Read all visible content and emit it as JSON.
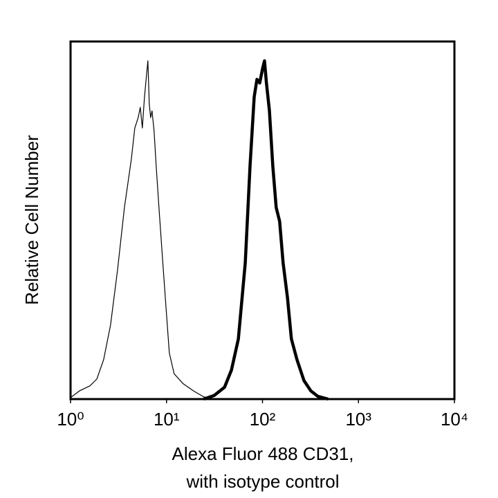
{
  "chart_data": {
    "type": "line",
    "xlabel": [
      "Alexa Fluor 488 CD31,",
      "with isotype control"
    ],
    "ylabel": "Relative Cell Number",
    "xscale": "log",
    "xlim": [
      1,
      10000
    ],
    "xticks": [
      {
        "value": 1,
        "label": "10⁰"
      },
      {
        "value": 10,
        "label": "10¹"
      },
      {
        "value": 100,
        "label": "10²"
      },
      {
        "value": 1000,
        "label": "10³"
      },
      {
        "value": 10000,
        "label": "10⁴"
      }
    ],
    "ylim": [
      0,
      100
    ],
    "series": [
      {
        "color": "#000000",
        "width": 1.2,
        "x": [
          1,
          1.24,
          1.59,
          1.88,
          2.21,
          2.61,
          3.09,
          3.64,
          4.3,
          4.67,
          5.07,
          5.33,
          5.6,
          5.89,
          6.18,
          6.39,
          6.61,
          6.83,
          7.06,
          7.42,
          7.8,
          8.34,
          9.05,
          9.83,
          10.7,
          12.0,
          14.9,
          19.1,
          24.5,
          31.4
        ],
        "values": [
          0.4,
          2.3,
          3.7,
          5.6,
          11.0,
          20.7,
          36.2,
          53.6,
          67.1,
          75.8,
          78.7,
          81.6,
          75.8,
          84.5,
          90.3,
          94.6,
          82.6,
          78.7,
          80.6,
          74.9,
          65.2,
          53.6,
          40.0,
          26.5,
          12.9,
          7.1,
          4.3,
          2.3,
          0.6,
          0
        ]
      },
      {
        "color": "#000000",
        "width": 4.5,
        "x": [
          24.5,
          31.4,
          40.2,
          47.5,
          56.0,
          66.1,
          74.2,
          81.9,
          87.6,
          93.6,
          100,
          105,
          110,
          118,
          128,
          139,
          151,
          164,
          182,
          200,
          229,
          270,
          319,
          376,
          483
        ],
        "values": [
          0,
          1.0,
          3.3,
          8.1,
          16.8,
          38.1,
          65.2,
          84.5,
          89.4,
          88.4,
          92.3,
          94.6,
          88.4,
          80.7,
          65.2,
          53.6,
          49.7,
          38.1,
          28.4,
          16.8,
          11.0,
          5.2,
          2.3,
          0.8,
          0
        ]
      }
    ]
  }
}
